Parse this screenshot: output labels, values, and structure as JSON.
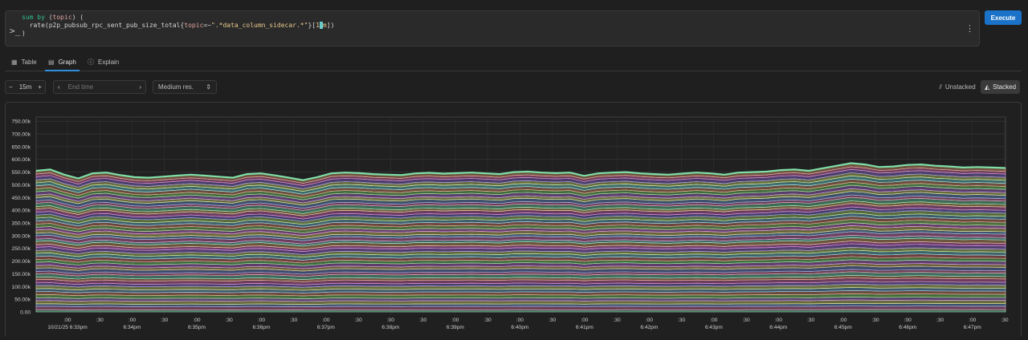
{
  "query": {
    "line1_kw1": "sum by",
    "line1_paren_open": " (",
    "line1_label": "topic",
    "line1_paren_close": ") (",
    "line2_fn": "rate(p2p_pubsub_rpc_sent_pub_size_total{",
    "line2_label": "topic",
    "line2_op": "=~",
    "line2_str": "\".*data_column_sidecar.*\"",
    "line2_range_open": "}[",
    "line2_range_a": "1",
    "line2_range_b": "m",
    "line2_close": "])",
    "line3": ")",
    "prompt": ">_",
    "menu_icon": "kebab-vertical-icon"
  },
  "toolbar": {
    "execute_label": "Execute"
  },
  "tabs": [
    {
      "label": "Table",
      "icon": "table-icon"
    },
    {
      "label": "Graph",
      "icon": "graph-icon",
      "active": true
    },
    {
      "label": "Explain",
      "icon": "explain-icon"
    }
  ],
  "controls": {
    "range_value": "15m",
    "minus": "−",
    "plus": "+",
    "end_time_placeholder": "End time",
    "resolution": "Medium res.",
    "unstacked_label": "Unstacked",
    "stacked_label": "Stacked",
    "mode": "stacked"
  },
  "chart_data": {
    "type": "area",
    "stacked": true,
    "series_count": 48,
    "y_ticks": [
      "0.00",
      "50.00k",
      "100.00k",
      "150.00k",
      "200.00k",
      "250.00k",
      "300.00k",
      "350.00k",
      "400.00k",
      "450.00k",
      "500.00k",
      "550.00k",
      "600.00k",
      "650.00k",
      "700.00k",
      "750.00k"
    ],
    "ylim": [
      0,
      760000
    ],
    "x_ticks": [
      {
        "top": ":00",
        "bottom": "10/21/25 6:33pm"
      },
      {
        "top": ":30",
        "bottom": ""
      },
      {
        "top": ":00",
        "bottom": "6:34pm"
      },
      {
        "top": ":30",
        "bottom": ""
      },
      {
        "top": ":00",
        "bottom": "6:35pm"
      },
      {
        "top": ":30",
        "bottom": ""
      },
      {
        "top": ":00",
        "bottom": "6:36pm"
      },
      {
        "top": ":30",
        "bottom": ""
      },
      {
        "top": ":00",
        "bottom": "6:37pm"
      },
      {
        "top": ":30",
        "bottom": ""
      },
      {
        "top": ":00",
        "bottom": "6:38pm"
      },
      {
        "top": ":30",
        "bottom": ""
      },
      {
        "top": ":00",
        "bottom": "6:39pm"
      },
      {
        "top": ":30",
        "bottom": ""
      },
      {
        "top": ":00",
        "bottom": "6:40pm"
      },
      {
        "top": ":30",
        "bottom": ""
      },
      {
        "top": ":00",
        "bottom": "6:41pm"
      },
      {
        "top": ":30",
        "bottom": ""
      },
      {
        "top": ":00",
        "bottom": "6:42pm"
      },
      {
        "top": ":30",
        "bottom": ""
      },
      {
        "top": ":00",
        "bottom": "6:43pm"
      },
      {
        "top": ":30",
        "bottom": ""
      },
      {
        "top": ":00",
        "bottom": "6:44pm"
      },
      {
        "top": ":30",
        "bottom": ""
      },
      {
        "top": ":00",
        "bottom": "6:45pm"
      },
      {
        "top": ":30",
        "bottom": ""
      },
      {
        "top": ":00",
        "bottom": "6:46pm"
      },
      {
        "top": ":30",
        "bottom": ""
      },
      {
        "top": ":00",
        "bottom": "6:47pm"
      },
      {
        "top": ":30",
        "bottom": ""
      }
    ],
    "total": [
      555000,
      560000,
      540000,
      525000,
      545000,
      548000,
      538000,
      530000,
      528000,
      532000,
      536000,
      540000,
      536000,
      532000,
      528000,
      542000,
      545000,
      537000,
      528000,
      518000,
      530000,
      545000,
      548000,
      546000,
      542000,
      540000,
      538000,
      545000,
      547000,
      544000,
      546000,
      548000,
      545000,
      542000,
      550000,
      552000,
      548000,
      546000,
      548000,
      535000,
      545000,
      548000,
      550000,
      545000,
      542000,
      540000,
      544000,
      548000,
      545000,
      540000,
      548000,
      550000,
      552000,
      558000,
      560000,
      555000,
      565000,
      575000,
      585000,
      580000,
      570000,
      572000,
      578000,
      580000,
      575000,
      572000,
      568000,
      570000,
      568000,
      566000
    ],
    "grid": true
  }
}
